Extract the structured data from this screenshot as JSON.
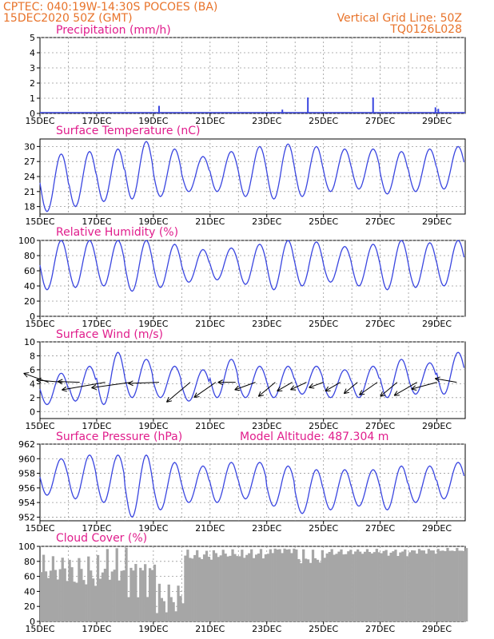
{
  "header": {
    "line1": "CPTEC:   040:19W-14:30S   POCOES (BA)",
    "line2": "15DEC2020 50Z (GMT)",
    "grid_note": "Vertical Grid Line: 50Z",
    "code": "TQ0126L028"
  },
  "colors": {
    "header": "#e8732a",
    "panel_title": "#e01d8c",
    "series": "#3a46e0",
    "cloud": "#a6a6a6",
    "arrows": "#000000"
  },
  "chart_data": [
    {
      "type": "bar",
      "title": "Precipitation  (mm/h)",
      "ylim": [
        0,
        5
      ],
      "yticks": [
        "0",
        "1",
        "2",
        "3",
        "4",
        "5"
      ],
      "xticks": [
        "15DEC",
        "17DEC",
        "19DEC",
        "21DEC",
        "23DEC",
        "25DEC",
        "27DEC",
        "29DEC"
      ],
      "bars": [
        {
          "day": 19.2,
          "value": 0.5
        },
        {
          "day": 23.55,
          "value": 0.25
        },
        {
          "day": 24.45,
          "value": 1.05
        },
        {
          "day": 26.75,
          "value": 1.05
        },
        {
          "day": 28.95,
          "value": 0.4
        },
        {
          "day": 29.05,
          "value": 0.3
        }
      ]
    },
    {
      "type": "line",
      "title": "Surface Temperature (nC)",
      "ylim": [
        16.5,
        31.5
      ],
      "yticks": [
        "18",
        "21",
        "24",
        "27",
        "30"
      ],
      "xticks": [
        "15DEC",
        "17DEC",
        "19DEC",
        "21DEC",
        "23DEC",
        "25DEC",
        "27DEC",
        "29DEC"
      ],
      "daily_max": [
        28.5,
        29.0,
        29.5,
        31.0,
        29.5,
        28.0,
        29.0,
        30.0,
        30.5,
        30.0,
        29.5,
        29.5,
        29.0,
        29.5,
        30.0,
        29.0
      ],
      "daily_min": [
        17.0,
        18.0,
        19.0,
        19.5,
        20.0,
        21.0,
        21.0,
        20.0,
        19.5,
        20.0,
        21.0,
        21.5,
        20.5,
        21.0,
        21.5,
        21.0
      ]
    },
    {
      "type": "line",
      "title": "Relative Humidity (%)",
      "ylim": [
        0,
        100
      ],
      "yticks": [
        "0",
        "20",
        "40",
        "60",
        "80",
        "100"
      ],
      "xticks": [
        "15DEC",
        "17DEC",
        "19DEC",
        "21DEC",
        "23DEC",
        "25DEC",
        "27DEC",
        "29DEC"
      ],
      "daily_max": [
        100,
        100,
        100,
        100,
        95,
        88,
        90,
        95,
        100,
        98,
        92,
        95,
        100,
        97,
        100,
        100
      ],
      "daily_min": [
        35,
        38,
        40,
        33,
        38,
        45,
        48,
        42,
        35,
        40,
        45,
        40,
        35,
        38,
        40,
        38
      ]
    },
    {
      "type": "line",
      "title": "Surface Wind  (m/s)",
      "ylim": [
        -1,
        10
      ],
      "yticks": [
        "0",
        "2",
        "4",
        "6",
        "8",
        "10"
      ],
      "xticks": [
        "15DEC",
        "17DEC",
        "19DEC",
        "21DEC",
        "23DEC",
        "25DEC",
        "27DEC",
        "29DEC"
      ],
      "daily_max": [
        5.5,
        6.5,
        8.5,
        7.5,
        6.5,
        6.0,
        7.5,
        6.5,
        6.5,
        6.5,
        6.0,
        6.5,
        7.5,
        7.0,
        8.5,
        7.0
      ],
      "daily_min": [
        1.0,
        1.5,
        1.0,
        2.0,
        2.0,
        1.5,
        2.0,
        2.0,
        2.0,
        2.5,
        2.0,
        2.0,
        2.0,
        2.5,
        2.5,
        2.0
      ],
      "arrows": [
        {
          "day": 15.3,
          "dir_deg": 160,
          "len": 0.6
        },
        {
          "day": 15.8,
          "dir_deg": 175,
          "len": 0.6
        },
        {
          "day": 16.4,
          "dir_deg": 178,
          "len": 0.5
        },
        {
          "day": 17.3,
          "dir_deg": 190,
          "len": 1.0
        },
        {
          "day": 18.2,
          "dir_deg": 188,
          "len": 0.9
        },
        {
          "day": 19.2,
          "dir_deg": 182,
          "len": 0.7
        },
        {
          "day": 20.3,
          "dir_deg": 220,
          "len": 0.7
        },
        {
          "day": 21.2,
          "dir_deg": 215,
          "len": 0.6
        },
        {
          "day": 21.9,
          "dir_deg": 180,
          "len": 0.4
        },
        {
          "day": 22.6,
          "dir_deg": 200,
          "len": 0.5
        },
        {
          "day": 23.3,
          "dir_deg": 220,
          "len": 0.5
        },
        {
          "day": 23.9,
          "dir_deg": 210,
          "len": 0.4
        },
        {
          "day": 24.4,
          "dir_deg": 205,
          "len": 0.4
        },
        {
          "day": 25.0,
          "dir_deg": 200,
          "len": 0.35
        },
        {
          "day": 25.6,
          "dir_deg": 210,
          "len": 0.4
        },
        {
          "day": 26.2,
          "dir_deg": 220,
          "len": 0.4
        },
        {
          "day": 26.9,
          "dir_deg": 215,
          "len": 0.5
        },
        {
          "day": 27.6,
          "dir_deg": 220,
          "len": 0.5
        },
        {
          "day": 28.3,
          "dir_deg": 210,
          "len": 0.6
        },
        {
          "day": 29.0,
          "dir_deg": 195,
          "len": 0.6
        },
        {
          "day": 29.7,
          "dir_deg": 170,
          "len": 0.5
        }
      ]
    },
    {
      "type": "line",
      "title": "Surface Pressure (hPa)",
      "annotation": "Model Altitude: 487.304  m",
      "ylim": [
        951.5,
        962
      ],
      "yticks": [
        "952",
        "954",
        "956",
        "958",
        "960",
        "962"
      ],
      "xticks": [
        "15DEC",
        "17DEC",
        "19DEC",
        "21DEC",
        "23DEC",
        "25DEC",
        "27DEC",
        "29DEC"
      ],
      "daily_max": [
        960.0,
        960.5,
        960.5,
        960.5,
        959.5,
        959.0,
        959.5,
        959.5,
        959.0,
        958.5,
        958.5,
        958.5,
        959.0,
        959.0,
        959.5,
        959.0
      ],
      "daily_min": [
        955.0,
        954.5,
        954.0,
        952.0,
        953.0,
        954.0,
        954.0,
        954.5,
        953.5,
        952.5,
        953.0,
        953.5,
        953.0,
        954.0,
        954.5,
        954.0
      ]
    },
    {
      "type": "bar",
      "title": "Cloud Cover (%)",
      "ylim": [
        0,
        100
      ],
      "yticks": [
        "0",
        "20",
        "40",
        "60",
        "80",
        "100"
      ],
      "xticks": [
        "15DEC",
        "17DEC",
        "19DEC",
        "21DEC",
        "23DEC",
        "25DEC",
        "27DEC",
        "29DEC"
      ],
      "daily_mean": [
        70,
        65,
        72,
        62,
        30,
        88,
        90,
        90,
        95,
        85,
        92,
        93,
        92,
        94,
        95,
        94
      ],
      "daily_range": [
        25,
        30,
        28,
        30,
        25,
        10,
        8,
        8,
        4,
        12,
        6,
        5,
        6,
        4,
        3,
        4
      ]
    }
  ]
}
